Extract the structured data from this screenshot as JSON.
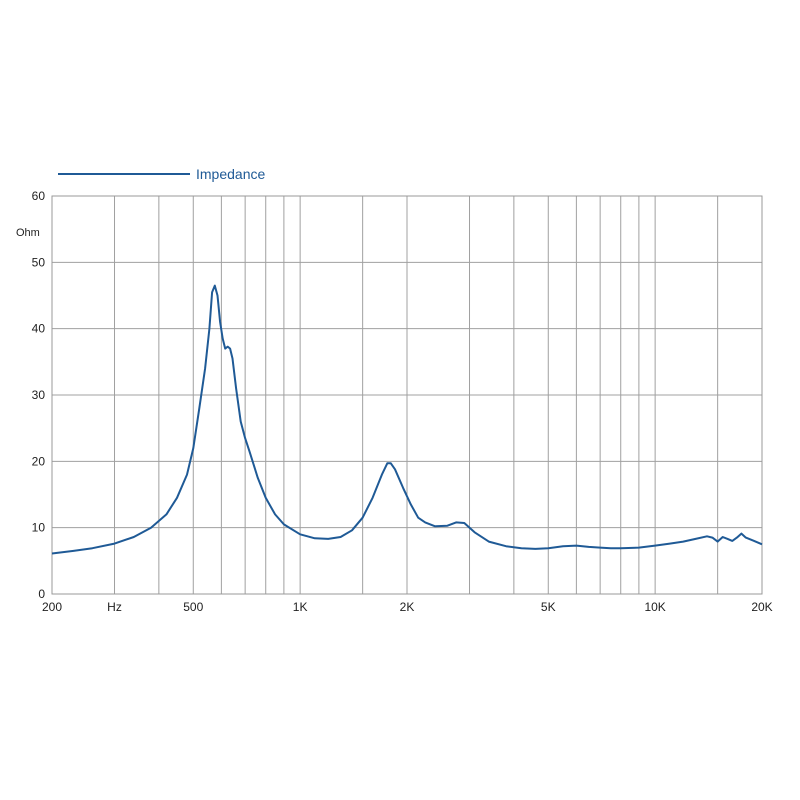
{
  "chart_data": {
    "type": "line",
    "title": "",
    "xlabel": "",
    "ylabel": "",
    "x_scale": "log",
    "xlim": [
      200,
      20000
    ],
    "ylim": [
      0,
      60
    ],
    "y_unit": "Ohm",
    "grid": true,
    "legend_position": "top-left",
    "x_tick_labels": [
      {
        "value": 200,
        "label": "200"
      },
      {
        "value": 300,
        "label": "Hz"
      },
      {
        "value": 500,
        "label": "500"
      },
      {
        "value": 1000,
        "label": "1K"
      },
      {
        "value": 2000,
        "label": "2K"
      },
      {
        "value": 5000,
        "label": "5K"
      },
      {
        "value": 10000,
        "label": "10K"
      },
      {
        "value": 20000,
        "label": "20K"
      }
    ],
    "x_gridlines": [
      300,
      400,
      500,
      600,
      700,
      800,
      900,
      1000,
      1500,
      2000,
      3000,
      4000,
      5000,
      6000,
      7000,
      8000,
      9000,
      10000,
      15000,
      20000
    ],
    "y_ticks": [
      0,
      10,
      20,
      30,
      40,
      50,
      60
    ],
    "series": [
      {
        "name": "Impedance",
        "color": "#1f5a96",
        "points": [
          [
            200,
            6.1
          ],
          [
            230,
            6.5
          ],
          [
            260,
            6.9
          ],
          [
            300,
            7.6
          ],
          [
            340,
            8.6
          ],
          [
            380,
            10.0
          ],
          [
            420,
            12.0
          ],
          [
            450,
            14.5
          ],
          [
            480,
            18.0
          ],
          [
            500,
            22.0
          ],
          [
            520,
            28.0
          ],
          [
            540,
            34.0
          ],
          [
            555,
            40.0
          ],
          [
            565,
            45.5
          ],
          [
            575,
            46.5
          ],
          [
            585,
            45.0
          ],
          [
            595,
            41.0
          ],
          [
            605,
            38.5
          ],
          [
            615,
            37.0
          ],
          [
            625,
            37.3
          ],
          [
            635,
            37.0
          ],
          [
            645,
            35.5
          ],
          [
            660,
            31.0
          ],
          [
            680,
            26.0
          ],
          [
            700,
            23.5
          ],
          [
            720,
            21.5
          ],
          [
            760,
            17.5
          ],
          [
            800,
            14.5
          ],
          [
            850,
            12.0
          ],
          [
            900,
            10.5
          ],
          [
            1000,
            9.0
          ],
          [
            1100,
            8.4
          ],
          [
            1200,
            8.3
          ],
          [
            1300,
            8.6
          ],
          [
            1400,
            9.6
          ],
          [
            1500,
            11.5
          ],
          [
            1600,
            14.5
          ],
          [
            1700,
            18.0
          ],
          [
            1760,
            19.7
          ],
          [
            1800,
            19.7
          ],
          [
            1850,
            18.8
          ],
          [
            1950,
            16.0
          ],
          [
            2050,
            13.5
          ],
          [
            2150,
            11.5
          ],
          [
            2250,
            10.8
          ],
          [
            2400,
            10.2
          ],
          [
            2600,
            10.3
          ],
          [
            2750,
            10.8
          ],
          [
            2900,
            10.7
          ],
          [
            3100,
            9.3
          ],
          [
            3400,
            7.9
          ],
          [
            3800,
            7.2
          ],
          [
            4200,
            6.9
          ],
          [
            4600,
            6.8
          ],
          [
            5000,
            6.9
          ],
          [
            5500,
            7.2
          ],
          [
            6000,
            7.3
          ],
          [
            6500,
            7.1
          ],
          [
            7000,
            7.0
          ],
          [
            7500,
            6.9
          ],
          [
            8000,
            6.9
          ],
          [
            9000,
            7.0
          ],
          [
            10000,
            7.3
          ],
          [
            11000,
            7.6
          ],
          [
            12000,
            7.9
          ],
          [
            13000,
            8.3
          ],
          [
            14000,
            8.7
          ],
          [
            14500,
            8.5
          ],
          [
            15000,
            7.9
          ],
          [
            15500,
            8.6
          ],
          [
            16000,
            8.3
          ],
          [
            16500,
            8.0
          ],
          [
            17000,
            8.5
          ],
          [
            17500,
            9.1
          ],
          [
            18000,
            8.5
          ],
          [
            19000,
            8.0
          ],
          [
            20000,
            7.5
          ]
        ]
      }
    ]
  }
}
